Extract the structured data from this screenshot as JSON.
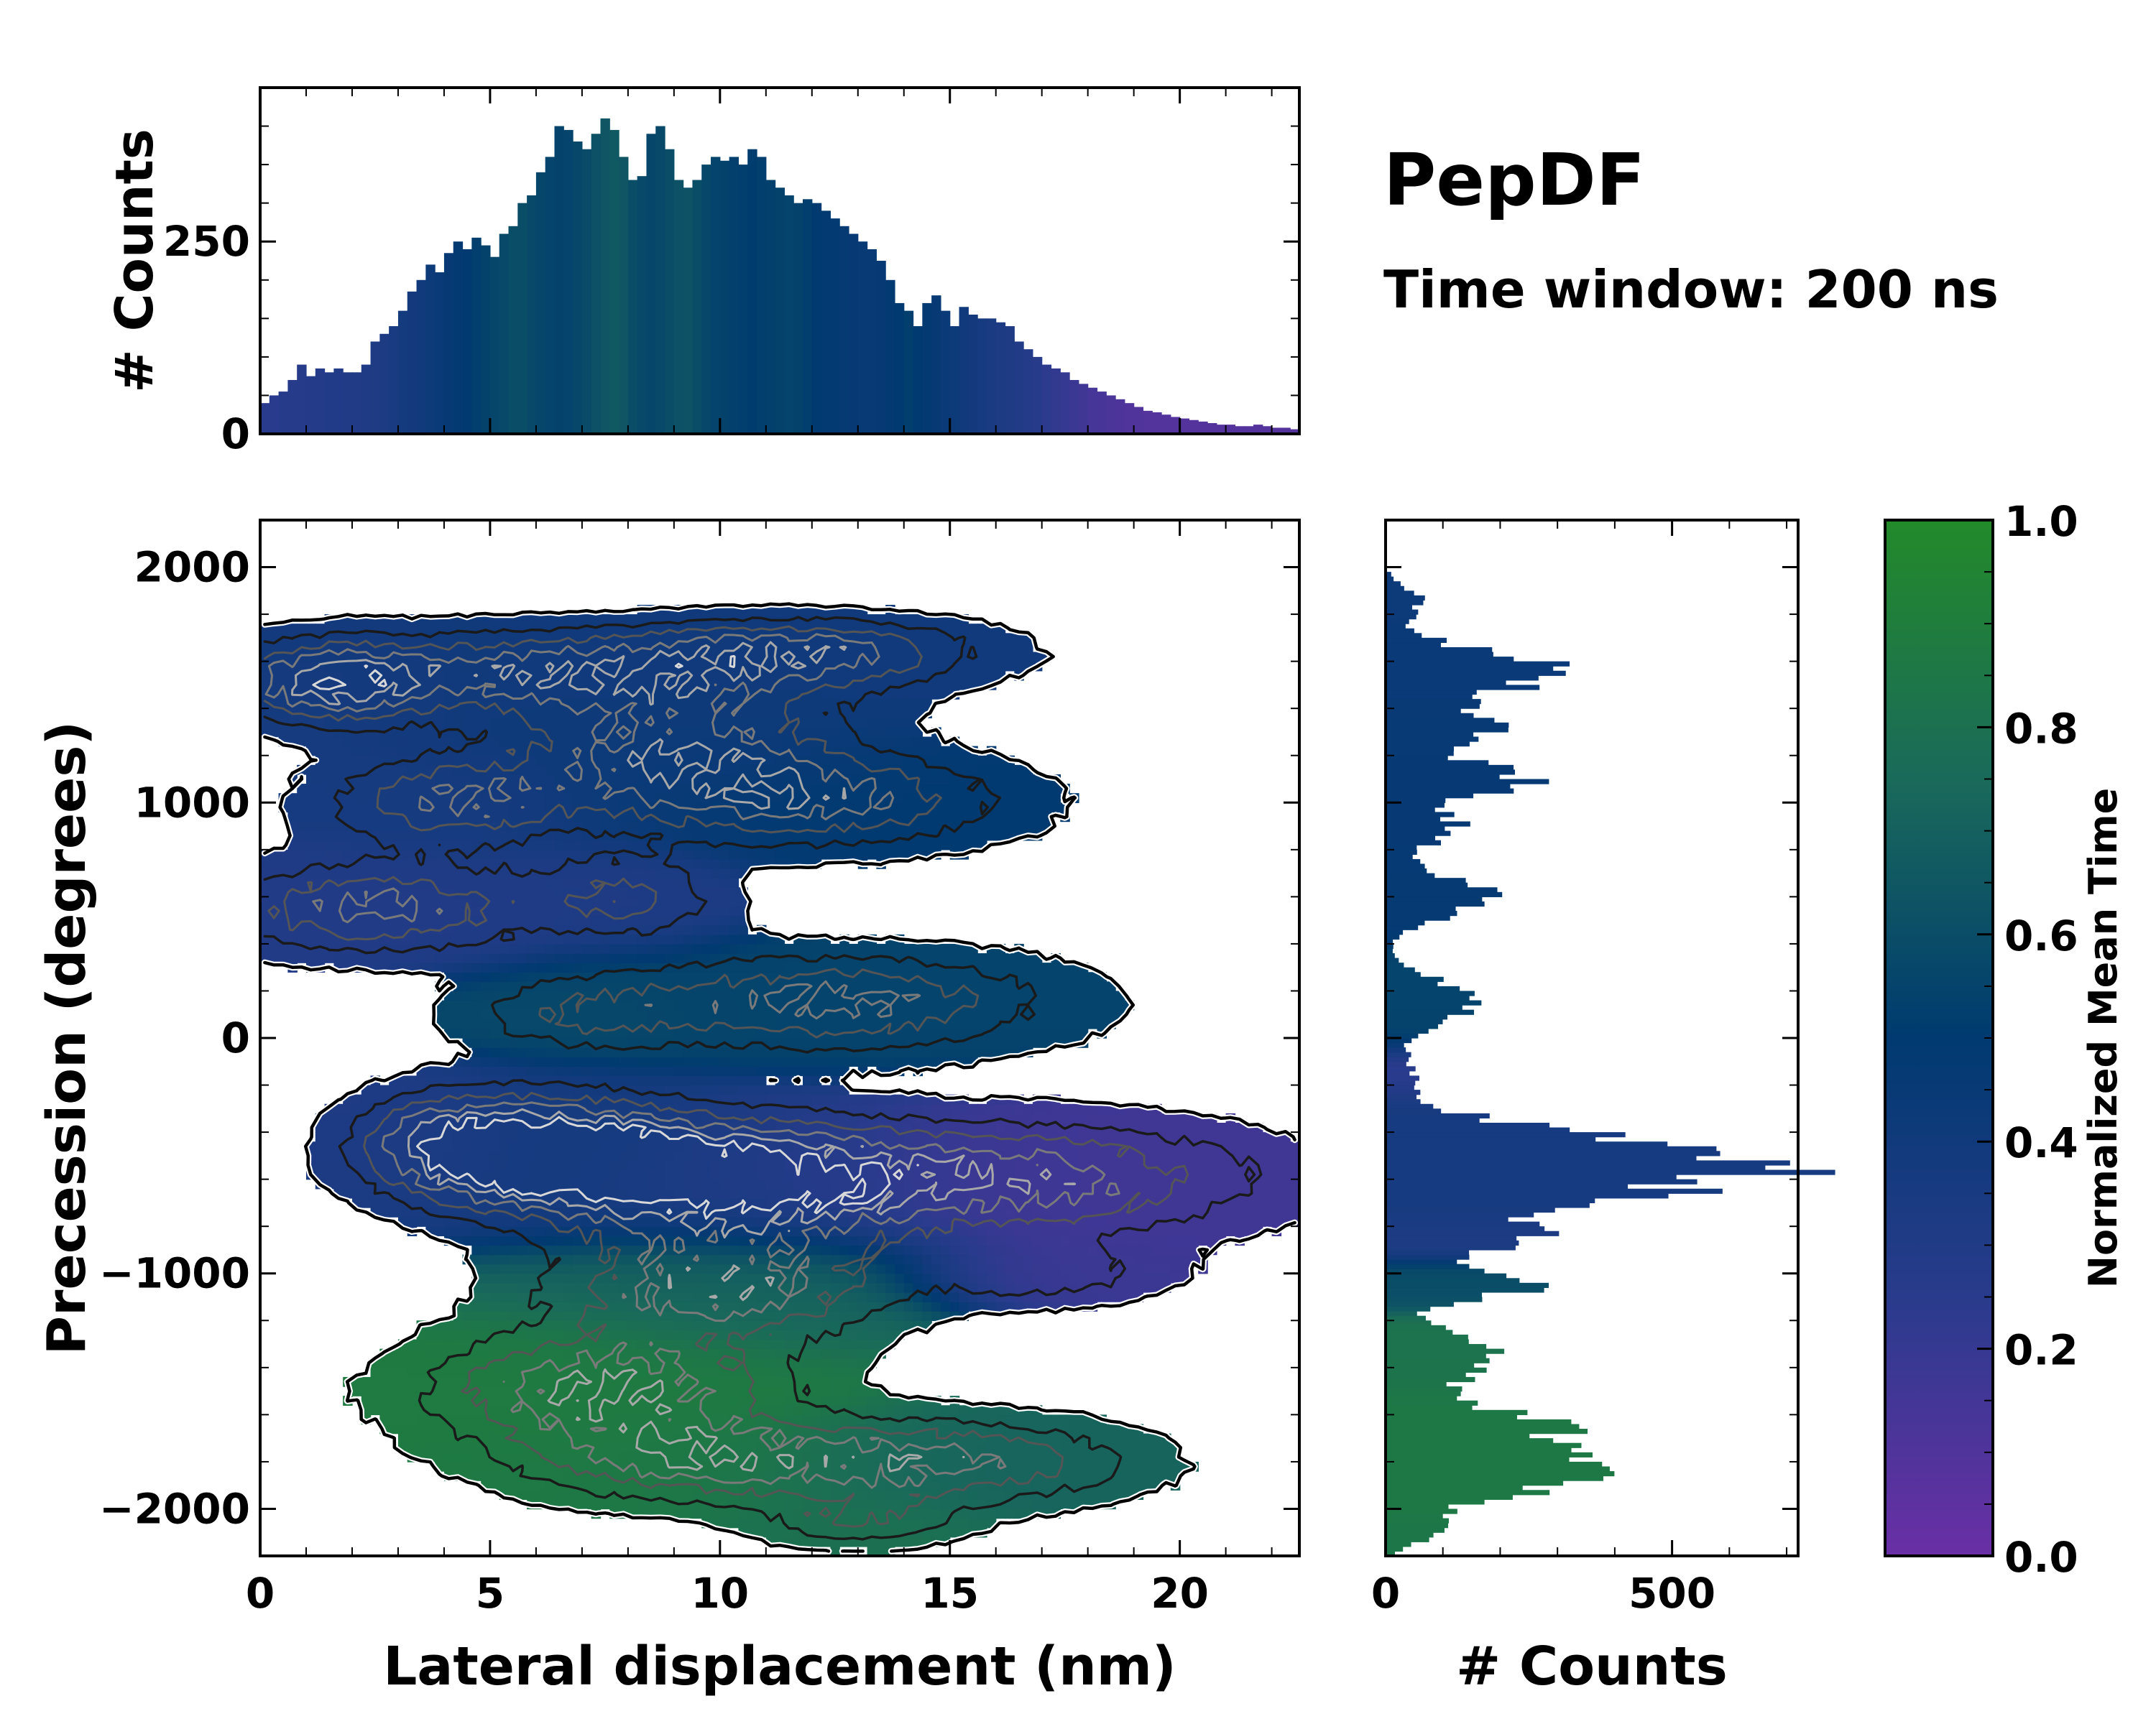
{
  "title": "PepDF",
  "subtitle": "Time window: 200 ns",
  "chart_data": [
    {
      "id": "top-histogram",
      "type": "bar",
      "title": "",
      "xlabel": "",
      "ylabel": "# Counts",
      "xlim": [
        0,
        22.6
      ],
      "ylim": [
        0,
        450
      ],
      "ytick_labels": [
        "0",
        "250"
      ],
      "yticks": [
        0,
        250
      ],
      "bin_width": 0.2,
      "x": [
        0.1,
        0.3,
        0.5,
        0.7,
        0.9,
        1.1,
        1.3,
        1.5,
        1.7,
        1.9,
        2.1,
        2.3,
        2.5,
        2.7,
        2.9,
        3.1,
        3.3,
        3.5,
        3.7,
        3.9,
        4.1,
        4.3,
        4.5,
        4.7,
        4.9,
        5.1,
        5.3,
        5.5,
        5.7,
        5.9,
        6.1,
        6.3,
        6.5,
        6.7,
        6.9,
        7.1,
        7.3,
        7.5,
        7.7,
        7.9,
        8.1,
        8.3,
        8.5,
        8.7,
        8.9,
        9.1,
        9.3,
        9.5,
        9.7,
        9.9,
        10.1,
        10.3,
        10.5,
        10.7,
        10.9,
        11.1,
        11.3,
        11.5,
        11.7,
        11.9,
        12.1,
        12.3,
        12.5,
        12.7,
        12.9,
        13.1,
        13.3,
        13.5,
        13.7,
        13.9,
        14.1,
        14.3,
        14.5,
        14.7,
        14.9,
        15.1,
        15.3,
        15.5,
        15.7,
        15.9,
        16.1,
        16.3,
        16.5,
        16.7,
        16.9,
        17.1,
        17.3,
        17.5,
        17.7,
        17.9,
        18.1,
        18.3,
        18.5,
        18.7,
        18.9,
        19.1,
        19.3,
        19.5,
        19.7,
        19.9,
        20.1,
        20.3,
        20.5,
        20.7,
        20.9,
        21.1,
        21.3,
        21.5,
        21.7,
        21.9,
        22.1,
        22.3,
        22.5
      ],
      "values": [
        40,
        50,
        55,
        70,
        90,
        75,
        85,
        80,
        85,
        80,
        80,
        90,
        120,
        130,
        140,
        160,
        185,
        200,
        220,
        210,
        235,
        250,
        240,
        255,
        245,
        230,
        260,
        270,
        300,
        310,
        340,
        360,
        400,
        395,
        380,
        370,
        390,
        410,
        395,
        360,
        330,
        335,
        390,
        400,
        370,
        330,
        320,
        330,
        350,
        360,
        355,
        360,
        350,
        370,
        360,
        330,
        320,
        310,
        300,
        305,
        300,
        290,
        280,
        270,
        260,
        250,
        240,
        225,
        200,
        170,
        160,
        140,
        170,
        180,
        160,
        140,
        165,
        155,
        150,
        150,
        145,
        140,
        120,
        110,
        100,
        90,
        85,
        80,
        70,
        65,
        60,
        55,
        50,
        45,
        40,
        35,
        30,
        28,
        25,
        22,
        20,
        18,
        16,
        14,
        12,
        12,
        10,
        10,
        12,
        10,
        8,
        8,
        6
      ],
      "time": [
        0.25,
        0.25,
        0.26,
        0.27,
        0.27,
        0.28,
        0.28,
        0.29,
        0.29,
        0.3,
        0.3,
        0.31,
        0.32,
        0.33,
        0.35,
        0.37,
        0.38,
        0.4,
        0.42,
        0.44,
        0.46,
        0.48,
        0.5,
        0.52,
        0.54,
        0.56,
        0.58,
        0.6,
        0.6,
        0.58,
        0.56,
        0.55,
        0.54,
        0.55,
        0.57,
        0.59,
        0.62,
        0.64,
        0.66,
        0.64,
        0.6,
        0.58,
        0.56,
        0.58,
        0.6,
        0.62,
        0.63,
        0.6,
        0.57,
        0.55,
        0.54,
        0.53,
        0.52,
        0.51,
        0.52,
        0.53,
        0.54,
        0.55,
        0.54,
        0.52,
        0.5,
        0.49,
        0.48,
        0.47,
        0.46,
        0.45,
        0.45,
        0.46,
        0.48,
        0.5,
        0.52,
        0.5,
        0.48,
        0.46,
        0.44,
        0.42,
        0.4,
        0.38,
        0.36,
        0.34,
        0.33,
        0.32,
        0.3,
        0.28,
        0.26,
        0.24,
        0.22,
        0.2,
        0.18,
        0.16,
        0.14,
        0.13,
        0.12,
        0.11,
        0.1,
        0.1,
        0.09,
        0.09,
        0.09,
        0.08,
        0.08,
        0.08,
        0.08,
        0.08,
        0.08,
        0.08,
        0.08,
        0.08,
        0.08,
        0.08,
        0.08,
        0.08,
        0.08
      ]
    },
    {
      "id": "main-2d-histogram",
      "type": "heatmap",
      "title": "",
      "xlabel": "Lateral displacement (nm)",
      "ylabel": "Precession (degrees)",
      "xlim": [
        0,
        22.6
      ],
      "ylim": [
        -2200,
        2200
      ],
      "xticks": [
        0,
        5,
        10,
        15,
        20
      ],
      "xtick_labels": [
        "0",
        "5",
        "10",
        "15",
        "20"
      ],
      "yticks": [
        -2000,
        -1000,
        0,
        1000,
        2000
      ],
      "ytick_labels": [
        "−2000",
        "−1000",
        "0",
        "1000",
        "2000"
      ],
      "color_encodes": "Normalized Mean Time",
      "contour_overlay": true,
      "clusters": [
        {
          "x": 6.5,
          "y": 1550,
          "sx": 4.0,
          "sy": 120,
          "w": 1.0,
          "t": 0.4
        },
        {
          "x": 1.5,
          "y": 1500,
          "sx": 1.4,
          "sy": 120,
          "w": 0.9,
          "t": 0.36
        },
        {
          "x": 12.0,
          "y": 1650,
          "sx": 2.5,
          "sy": 90,
          "w": 0.8,
          "t": 0.4
        },
        {
          "x": 9.0,
          "y": 1200,
          "sx": 2.5,
          "sy": 180,
          "w": 1.0,
          "t": 0.42
        },
        {
          "x": 4.0,
          "y": 1000,
          "sx": 1.8,
          "sy": 130,
          "w": 0.8,
          "t": 0.36
        },
        {
          "x": 12.5,
          "y": 1000,
          "sx": 2.6,
          "sy": 130,
          "w": 0.8,
          "t": 0.5
        },
        {
          "x": 2.5,
          "y": 550,
          "sx": 2.4,
          "sy": 130,
          "w": 0.9,
          "t": 0.3
        },
        {
          "x": 8.0,
          "y": 600,
          "sx": 1.4,
          "sy": 120,
          "w": 0.6,
          "t": 0.32
        },
        {
          "x": 12.5,
          "y": 150,
          "sx": 3.2,
          "sy": 140,
          "w": 0.9,
          "t": 0.55
        },
        {
          "x": 7.0,
          "y": 100,
          "sx": 1.8,
          "sy": 110,
          "w": 0.5,
          "t": 0.58
        },
        {
          "x": 6.5,
          "y": -500,
          "sx": 2.0,
          "sy": 160,
          "w": 1.6,
          "t": 0.38
        },
        {
          "x": 10.5,
          "y": -600,
          "sx": 2.5,
          "sy": 170,
          "w": 1.3,
          "t": 0.32
        },
        {
          "x": 16.5,
          "y": -600,
          "sx": 3.5,
          "sy": 160,
          "w": 1.0,
          "t": 0.16
        },
        {
          "x": 4.0,
          "y": -450,
          "sx": 1.4,
          "sy": 150,
          "w": 0.8,
          "t": 0.3
        },
        {
          "x": 10.0,
          "y": -1050,
          "sx": 2.5,
          "sy": 160,
          "w": 1.0,
          "t": 0.72
        },
        {
          "x": 17.0,
          "y": -1000,
          "sx": 1.8,
          "sy": 90,
          "w": 0.5,
          "t": 0.18
        },
        {
          "x": 7.5,
          "y": -1500,
          "sx": 2.6,
          "sy": 170,
          "w": 1.1,
          "t": 0.88
        },
        {
          "x": 9.5,
          "y": -1800,
          "sx": 2.5,
          "sy": 120,
          "w": 0.8,
          "t": 0.86
        },
        {
          "x": 15.0,
          "y": -1800,
          "sx": 2.6,
          "sy": 120,
          "w": 0.9,
          "t": 0.72
        },
        {
          "x": 13.0,
          "y": -2050,
          "sx": 1.5,
          "sy": 80,
          "w": 0.5,
          "t": 0.8
        }
      ]
    },
    {
      "id": "right-histogram",
      "type": "bar",
      "orientation": "horizontal",
      "xlabel": "# Counts",
      "ylabel": "",
      "xlim": [
        0,
        720
      ],
      "xticks": [
        0,
        500
      ],
      "xtick_labels": [
        "0",
        "500"
      ],
      "ylim": [
        -2200,
        2200
      ],
      "bin_height": 20,
      "peaks": [
        {
          "y": 1850,
          "sy": 60,
          "value": 60,
          "t": 0.42
        },
        {
          "y": 1550,
          "sy": 90,
          "value": 290,
          "t": 0.44
        },
        {
          "y": 1300,
          "sy": 70,
          "value": 180,
          "t": 0.45
        },
        {
          "y": 1100,
          "sy": 60,
          "value": 250,
          "t": 0.46
        },
        {
          "y": 900,
          "sy": 80,
          "value": 120,
          "t": 0.46
        },
        {
          "y": 600,
          "sy": 80,
          "value": 180,
          "t": 0.47
        },
        {
          "y": 150,
          "sy": 100,
          "value": 140,
          "t": 0.55
        },
        {
          "y": -150,
          "sy": 80,
          "value": 40,
          "t": 0.22
        },
        {
          "y": -550,
          "sy": 130,
          "value": 650,
          "t": 0.36
        },
        {
          "y": -850,
          "sy": 60,
          "value": 200,
          "t": 0.32
        },
        {
          "y": -1050,
          "sy": 60,
          "value": 250,
          "t": 0.6
        },
        {
          "y": -1350,
          "sy": 100,
          "value": 180,
          "t": 0.82
        },
        {
          "y": -1650,
          "sy": 90,
          "value": 240,
          "t": 0.86
        },
        {
          "y": -1850,
          "sy": 100,
          "value": 320,
          "t": 0.86
        },
        {
          "y": -2100,
          "sy": 50,
          "value": 80,
          "t": 0.84
        }
      ]
    },
    {
      "id": "colorbar",
      "type": "colorbar",
      "label": "Normalized Mean Time",
      "range": [
        0.0,
        1.0
      ],
      "ticks": [
        0.0,
        0.2,
        0.4,
        0.6,
        0.8,
        1.0
      ],
      "tick_labels": [
        "0.0",
        "0.2",
        "0.4",
        "0.6",
        "0.8",
        "1.0"
      ],
      "colors": [
        "#6a2fa5",
        "#293b8c",
        "#003a70",
        "#1a6a5a",
        "#238a2a"
      ]
    }
  ]
}
